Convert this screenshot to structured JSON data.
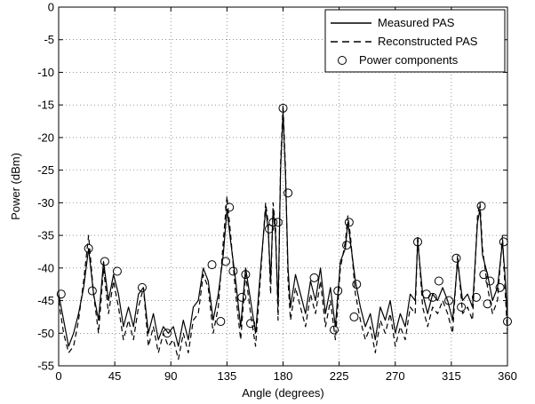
{
  "chart_data": {
    "type": "line",
    "xlabel": "Angle (degrees)",
    "ylabel": "Power (dBm)",
    "xlim": [
      0,
      360
    ],
    "ylim": [
      -55,
      0
    ],
    "xticks": [
      0,
      45,
      90,
      135,
      180,
      225,
      270,
      315,
      360
    ],
    "yticks": [
      0,
      -5,
      -10,
      -15,
      -20,
      -25,
      -30,
      -35,
      -40,
      -45,
      -50,
      -55
    ],
    "grid": true,
    "legend_position": "top-right",
    "series": [
      {
        "name": "Measured PAS",
        "style": "solid",
        "x": [
          0,
          4,
          8,
          12,
          16,
          20,
          24,
          28,
          32,
          36,
          40,
          44,
          48,
          52,
          56,
          60,
          64,
          68,
          72,
          76,
          80,
          84,
          88,
          92,
          96,
          100,
          104,
          108,
          112,
          116,
          120,
          124,
          128,
          132,
          135,
          138,
          142,
          146,
          150,
          154,
          158,
          162,
          166,
          168,
          170,
          172,
          174,
          176,
          178,
          180,
          182,
          184,
          186,
          190,
          194,
          198,
          202,
          206,
          210,
          214,
          218,
          222,
          226,
          230,
          232,
          234,
          238,
          242,
          246,
          250,
          254,
          258,
          262,
          266,
          270,
          274,
          278,
          282,
          286,
          288,
          292,
          296,
          300,
          304,
          308,
          312,
          316,
          320,
          324,
          328,
          332,
          336,
          338,
          340,
          344,
          348,
          352,
          356,
          358,
          360
        ],
        "y": [
          -44,
          -48,
          -52,
          -50,
          -47,
          -43,
          -37,
          -44,
          -48,
          -39,
          -45,
          -41,
          -44,
          -49,
          -46,
          -49,
          -44,
          -43,
          -50,
          -47,
          -51,
          -49,
          -50,
          -49,
          -52,
          -48,
          -51,
          -46,
          -45,
          -40,
          -42,
          -48,
          -44,
          -38,
          -31,
          -36,
          -42,
          -49,
          -40,
          -45,
          -50,
          -40,
          -31,
          -34,
          -42,
          -31,
          -35,
          -46,
          -25,
          -16,
          -26,
          -40,
          -46,
          -41,
          -44,
          -47,
          -42,
          -45,
          -40,
          -47,
          -43,
          -49,
          -39,
          -37,
          -33,
          -36,
          -42,
          -46,
          -49,
          -47,
          -51,
          -46,
          -48,
          -45,
          -50,
          -47,
          -49,
          -44,
          -45,
          -36,
          -44,
          -47,
          -44,
          -45,
          -43,
          -45,
          -48,
          -39,
          -45,
          -44,
          -46,
          -33,
          -31,
          -38,
          -41,
          -45,
          -43,
          -36,
          -41,
          -48
        ]
      },
      {
        "name": "Reconstructed PAS",
        "style": "dashed",
        "x": [
          0,
          4,
          8,
          12,
          16,
          20,
          24,
          28,
          32,
          36,
          40,
          44,
          48,
          52,
          56,
          60,
          64,
          68,
          72,
          76,
          80,
          84,
          88,
          92,
          96,
          100,
          104,
          108,
          112,
          116,
          120,
          124,
          128,
          132,
          135,
          138,
          142,
          146,
          150,
          154,
          158,
          162,
          166,
          168,
          170,
          172,
          174,
          176,
          178,
          180,
          182,
          184,
          186,
          190,
          194,
          198,
          202,
          206,
          210,
          214,
          218,
          222,
          226,
          230,
          232,
          234,
          238,
          242,
          246,
          250,
          254,
          258,
          262,
          266,
          270,
          274,
          278,
          282,
          286,
          288,
          292,
          296,
          300,
          304,
          308,
          312,
          316,
          320,
          324,
          328,
          332,
          336,
          338,
          340,
          344,
          348,
          352,
          356,
          358,
          360
        ],
        "y": [
          -45,
          -50,
          -53,
          -52,
          -48,
          -42,
          -35,
          -44,
          -50,
          -40,
          -47,
          -42,
          -46,
          -51,
          -48,
          -51,
          -46,
          -43,
          -52,
          -49,
          -53,
          -50,
          -52,
          -51,
          -54,
          -50,
          -53,
          -48,
          -47,
          -41,
          -43,
          -50,
          -46,
          -36,
          -29,
          -35,
          -44,
          -51,
          -41,
          -47,
          -52,
          -41,
          -30,
          -33,
          -44,
          -30,
          -34,
          -48,
          -24,
          -15,
          -25,
          -42,
          -48,
          -43,
          -46,
          -49,
          -44,
          -47,
          -42,
          -49,
          -45,
          -51,
          -40,
          -36,
          -32,
          -35,
          -44,
          -48,
          -51,
          -49,
          -53,
          -48,
          -50,
          -47,
          -52,
          -49,
          -51,
          -46,
          -47,
          -35,
          -46,
          -49,
          -46,
          -47,
          -45,
          -47,
          -50,
          -38,
          -47,
          -46,
          -48,
          -32,
          -30,
          -37,
          -43,
          -47,
          -45,
          -35,
          -43,
          -50
        ]
      },
      {
        "name": "Power components",
        "style": "markers",
        "x": [
          2,
          24,
          27,
          37,
          47,
          67,
          87,
          123,
          130,
          134,
          137,
          140,
          147,
          150,
          154,
          169,
          172,
          176,
          180,
          184,
          205,
          221,
          224,
          231,
          233,
          237,
          239,
          288,
          295,
          300,
          305,
          313,
          319,
          323,
          335,
          339,
          341,
          344,
          346,
          354,
          357,
          361
        ],
        "y": [
          -44,
          -37,
          -43.5,
          -39,
          -40.5,
          -43,
          -50,
          -39.5,
          -48.2,
          -39,
          -30.7,
          -40.5,
          -44.5,
          -41,
          -48.5,
          -34,
          -33,
          -33,
          -15.5,
          -28.5,
          -41.5,
          -49.5,
          -43.5,
          -36.5,
          -33,
          -47.5,
          -42.5,
          -36,
          -44,
          -44.5,
          -42,
          -45,
          -38.5,
          -46,
          -44.5,
          -30.5,
          -41,
          -45.5,
          -42,
          -43,
          -36,
          -48.2
        ]
      }
    ]
  }
}
